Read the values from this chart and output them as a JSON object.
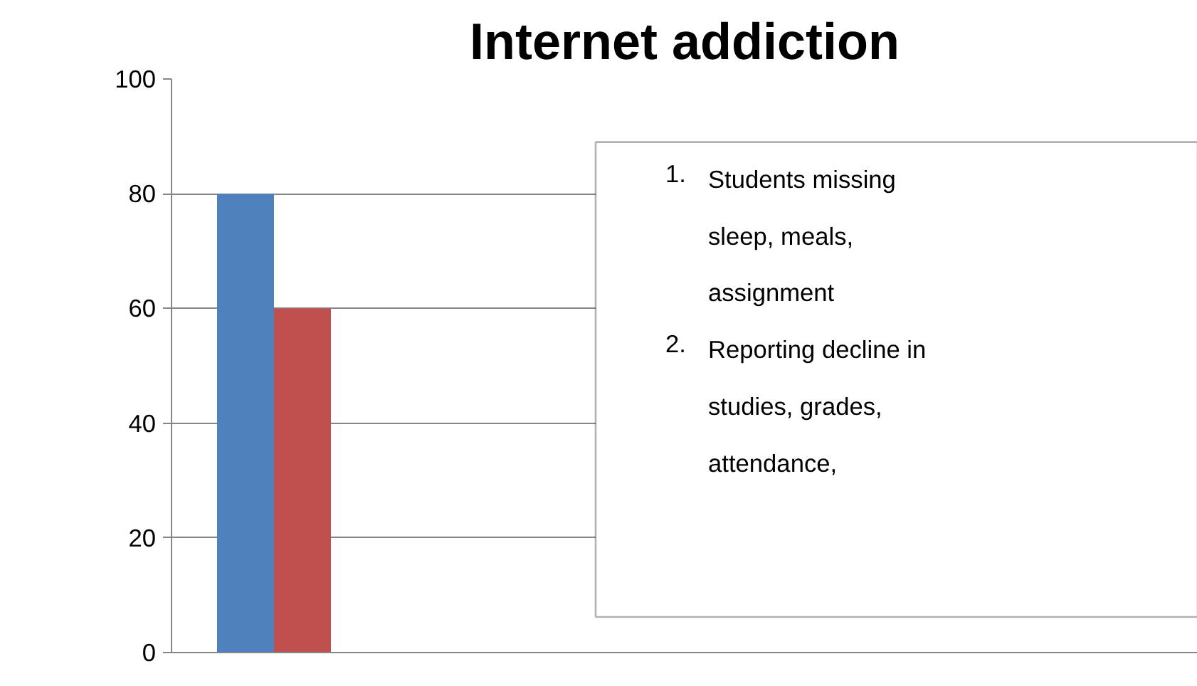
{
  "chart_data": {
    "type": "bar",
    "title": "Internet addiction",
    "categories": [
      null
    ],
    "series": [
      {
        "color": "#4f81bd",
        "values": [
          80
        ]
      },
      {
        "color": "#c0504d",
        "values": [
          60
        ]
      }
    ],
    "ylim": [
      0,
      100
    ],
    "yticks": [
      0,
      20,
      40,
      60,
      80,
      100
    ],
    "grid": "y",
    "tick_labels": "y",
    "annotations": [
      "1. Students missing sleep, meals, assignment",
      "2. Reporting decline in studies, grades, attendance,"
    ]
  }
}
